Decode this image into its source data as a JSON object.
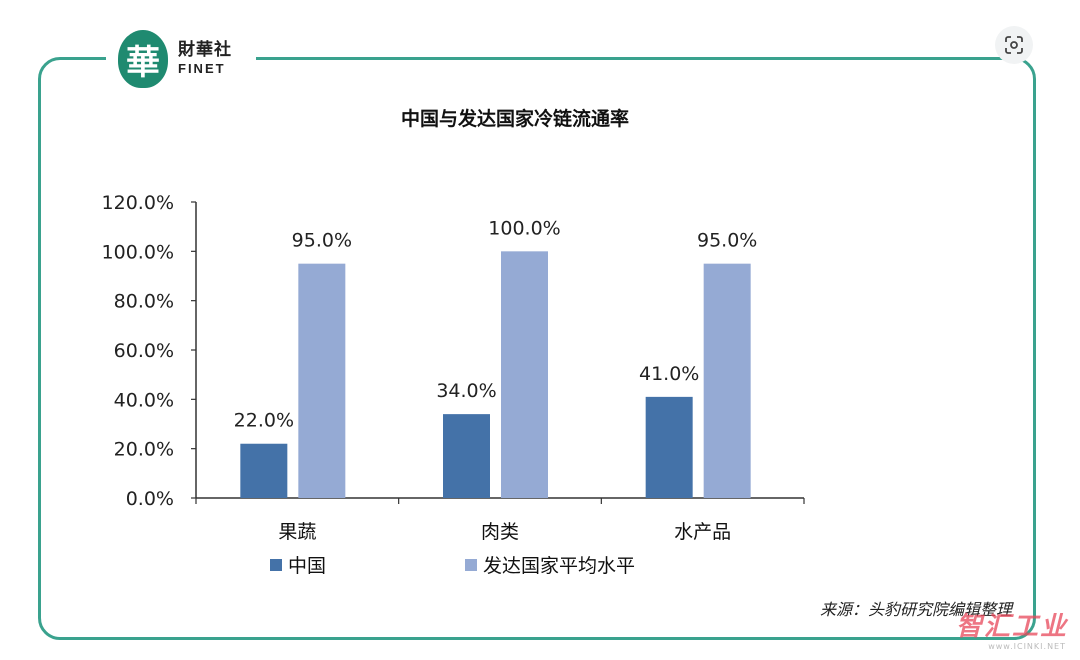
{
  "logo": {
    "glyph": "華",
    "cn": "財華社",
    "en": "FINET"
  },
  "source": "来源：头豹研究院编辑整理",
  "watermark": {
    "main": "智汇工业",
    "sub": "www.ICINKI.NET"
  },
  "colors": {
    "frame": "#3aa28e",
    "china": "#4472a8",
    "developed": "#95aad4"
  },
  "chart_data": {
    "type": "bar",
    "title": "中国与发达国家冷链流通率",
    "categories": [
      "果蔬",
      "肉类",
      "水产品"
    ],
    "series": [
      {
        "name": "中国",
        "values": [
          22.0,
          34.0,
          41.0
        ],
        "labels": [
          "22.0%",
          "34.0%",
          "41.0%"
        ],
        "color": "#4472a8"
      },
      {
        "name": "发达国家平均水平",
        "values": [
          95.0,
          100.0,
          95.0
        ],
        "labels": [
          "95.0%",
          "100.0%",
          "95.0%"
        ],
        "color": "#95aad4"
      }
    ],
    "ylim": [
      0,
      120
    ],
    "yticks": [
      "0.0%",
      "20.0%",
      "40.0%",
      "60.0%",
      "80.0%",
      "100.0%",
      "120.0%"
    ],
    "grid": false,
    "legend_position": "bottom-left"
  }
}
